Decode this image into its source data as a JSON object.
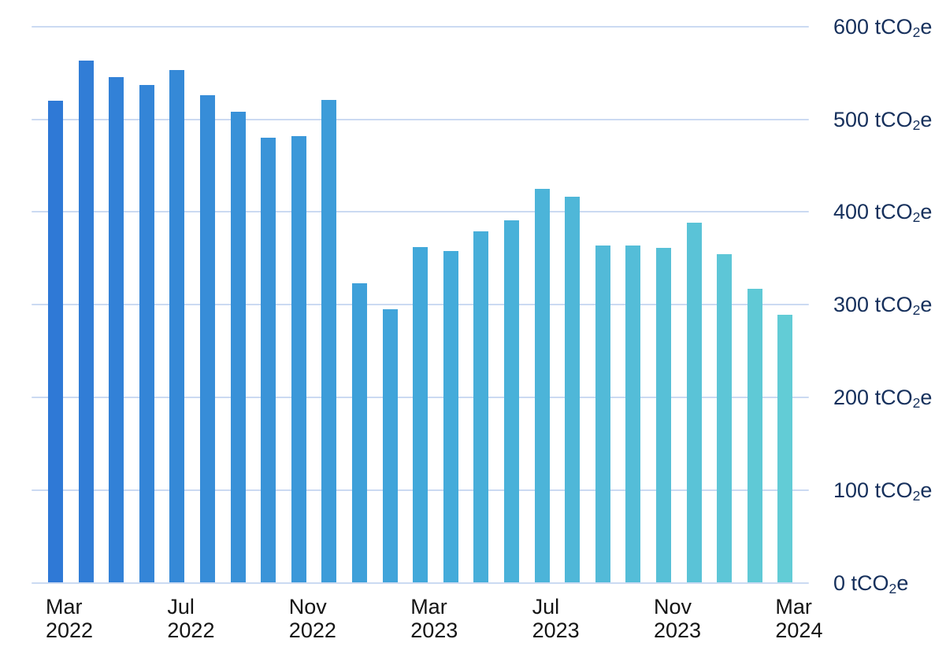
{
  "chart_data": {
    "type": "bar",
    "title": "",
    "unit": {
      "pre": "tCO",
      "sub": "2",
      "post": "e"
    },
    "y_ticks": [
      600,
      500,
      400,
      300,
      200,
      100,
      0
    ],
    "y_range": [
      0,
      600
    ],
    "grid": true,
    "legend_position": "none",
    "values": [
      520,
      563,
      545,
      537,
      553,
      526,
      508,
      480,
      482,
      521,
      323,
      295,
      362,
      358,
      379,
      391,
      425,
      416,
      364,
      364,
      361,
      388,
      354,
      317,
      289
    ],
    "x_ticks": [
      {
        "bar_index": 0,
        "lines": [
          "Mar",
          "2022"
        ]
      },
      {
        "bar_index": 4,
        "lines": [
          "Jul",
          "2022"
        ]
      },
      {
        "bar_index": 8,
        "lines": [
          "Nov",
          "2022"
        ]
      },
      {
        "bar_index": 12,
        "lines": [
          "Mar",
          "2023"
        ]
      },
      {
        "bar_index": 16,
        "lines": [
          "Jul",
          "2023"
        ]
      },
      {
        "bar_index": 20,
        "lines": [
          "Nov",
          "2023"
        ]
      },
      {
        "bar_index": 24,
        "lines": [
          "Mar",
          "2024"
        ]
      }
    ],
    "colors": {
      "bar_start": "#2F79D6",
      "bar_mid": "#41A8DA",
      "bar_end": "#62CCD6",
      "gridline": "#CBDAF2",
      "y_tick_text": "#16305C",
      "x_tick_text": "#141414",
      "background": "#FFFFFF"
    }
  }
}
